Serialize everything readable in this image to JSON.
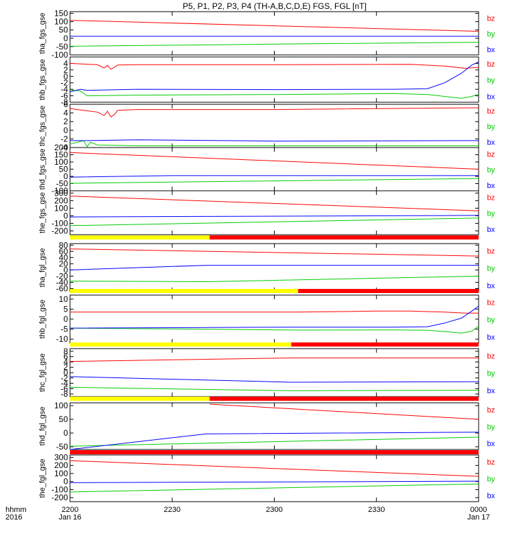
{
  "title": "P5, P1, P2, P3, P4 (TH-A,B,C,D,E) FGS, FGL [nT]",
  "colors": {
    "bx": "#0000ff",
    "by": "#00cc00",
    "bz": "#ff0000",
    "bar_low": "#ffff00",
    "bar_high": "#ff0000"
  },
  "time_axis": {
    "row_labels": [
      "hhmm",
      "2016"
    ],
    "ticks": [
      {
        "t": 0,
        "label": "2200",
        "sub": "Jan 16"
      },
      {
        "t": 30,
        "label": "2230",
        "sub": ""
      },
      {
        "t": 60,
        "label": "2300",
        "sub": ""
      },
      {
        "t": 90,
        "label": "2330",
        "sub": ""
      },
      {
        "t": 120,
        "label": "0000",
        "sub": "Jan 17"
      }
    ],
    "range_minutes": [
      0,
      120
    ]
  },
  "chart_data": [
    {
      "type": "line",
      "ylabel": "tha_fgs_gse",
      "ylim": [
        -100,
        160
      ],
      "yticks": [
        -100,
        -50,
        0,
        50,
        100,
        150
      ],
      "series": [
        {
          "name": "bz",
          "x": [
            0,
            60,
            120
          ],
          "values": [
            108,
            75,
            42
          ]
        },
        {
          "name": "by",
          "x": [
            0,
            60,
            120
          ],
          "values": [
            -48,
            -35,
            -24
          ]
        },
        {
          "name": "bx",
          "x": [
            0,
            60,
            120
          ],
          "values": [
            12,
            12,
            12
          ]
        }
      ]
    },
    {
      "type": "line",
      "ylabel": "thb_fgs_gse",
      "ylim": [
        -8,
        6
      ],
      "yticks": [
        -8,
        -6,
        -4,
        -2,
        0,
        2,
        4
      ],
      "series": [
        {
          "name": "bz",
          "x": [
            0,
            8,
            10,
            11,
            12,
            13,
            14,
            20,
            60,
            100,
            110,
            116,
            120
          ],
          "values": [
            4,
            3.6,
            2.6,
            3.4,
            2.2,
            2.8,
            3.5,
            3.6,
            3.6,
            3.7,
            3.2,
            2.5,
            2.8
          ]
        },
        {
          "name": "by",
          "x": [
            0,
            3,
            5,
            20,
            60,
            95,
            105,
            110,
            115,
            118,
            120
          ],
          "values": [
            -4.2,
            -4.5,
            -6,
            -5.8,
            -5.6,
            -5.3,
            -5.6,
            -6.2,
            -6.8,
            -6.2,
            -5.5
          ]
        },
        {
          "name": "bx",
          "x": [
            0,
            3,
            5,
            20,
            60,
            95,
            105,
            110,
            115,
            118,
            120
          ],
          "values": [
            -4.8,
            -4,
            -4.3,
            -4,
            -4.1,
            -4,
            -3.8,
            -2,
            1,
            3.5,
            4.5
          ]
        }
      ]
    },
    {
      "type": "line",
      "ylabel": "thc_fgs_gse",
      "ylim": [
        -4,
        6
      ],
      "yticks": [
        -4,
        -2,
        0,
        2,
        4,
        6
      ],
      "series": [
        {
          "name": "bz",
          "x": [
            0,
            8,
            10,
            11,
            12,
            13,
            14,
            20,
            60,
            120
          ],
          "values": [
            5,
            4.2,
            3.4,
            4.4,
            3.1,
            3.6,
            4.6,
            4.8,
            4.8,
            5.2
          ]
        },
        {
          "name": "by",
          "x": [
            0,
            4,
            5,
            6,
            8,
            20,
            60,
            120
          ],
          "values": [
            -3.2,
            -2.4,
            -3.8,
            -2.8,
            -3.4,
            -3.6,
            -3.6,
            -3.6
          ]
        },
        {
          "name": "bx",
          "x": [
            0,
            5,
            20,
            60,
            120
          ],
          "values": [
            -2.4,
            -2.4,
            -2.2,
            -2.5,
            -2.4
          ]
        }
      ]
    },
    {
      "type": "line",
      "ylabel": "thd_fgs_gse",
      "ylim": [
        -100,
        200
      ],
      "yticks": [
        -100,
        -50,
        0,
        50,
        100,
        150,
        200
      ],
      "series": [
        {
          "name": "bz",
          "x": [
            0,
            120
          ],
          "values": [
            165,
            50
          ]
        },
        {
          "name": "by",
          "x": [
            0,
            120
          ],
          "values": [
            -48,
            -15
          ]
        },
        {
          "name": "bx",
          "x": [
            0,
            30,
            120
          ],
          "values": [
            -5,
            5,
            5
          ]
        }
      ]
    },
    {
      "type": "line",
      "ylabel": "the_fgs_gse",
      "ylim": [
        -250,
        330
      ],
      "yticks": [
        -200,
        -100,
        0,
        100,
        200,
        300
      ],
      "series": [
        {
          "name": "bz",
          "x": [
            0,
            120
          ],
          "values": [
            260,
            65
          ]
        },
        {
          "name": "by",
          "x": [
            0,
            120
          ],
          "values": [
            -130,
            -30
          ]
        },
        {
          "name": "bx",
          "x": [
            0,
            120
          ],
          "values": [
            -15,
            5
          ]
        }
      ]
    },
    {
      "type": "line",
      "ylabel": "tha_fgl_gse",
      "ylim": [
        -70,
        85
      ],
      "yticks": [
        -60,
        -40,
        -20,
        0,
        20,
        40,
        60,
        80
      ],
      "bar": {
        "split_minute": 41,
        "full_red": false
      },
      "series": [
        {
          "name": "bz",
          "x": [
            0,
            120
          ],
          "values": [
            68,
            45
          ]
        },
        {
          "name": "by",
          "x": [
            0,
            40,
            120
          ],
          "values": [
            -36,
            -38,
            -20
          ]
        },
        {
          "name": "bx",
          "x": [
            0,
            40,
            120
          ],
          "values": [
            0,
            15,
            15
          ]
        }
      ]
    },
    {
      "type": "line",
      "ylabel": "thb_fgl_gse",
      "ylim": [
        -12,
        12
      ],
      "yticks": [
        -10,
        -5,
        0,
        5,
        10
      ],
      "bar": {
        "split_minute": 67,
        "full_red": false
      },
      "series": [
        {
          "name": "bz",
          "x": [
            0,
            67,
            90,
            100,
            110,
            116,
            120
          ],
          "values": [
            3.5,
            3.5,
            4,
            4,
            3.5,
            3,
            3
          ]
        },
        {
          "name": "by",
          "x": [
            0,
            67,
            95,
            105,
            110,
            115,
            118,
            120
          ],
          "values": [
            -4.5,
            -5.5,
            -5.4,
            -5.6,
            -6.2,
            -7,
            -6,
            -3.5
          ]
        },
        {
          "name": "bx",
          "x": [
            0,
            67,
            95,
            105,
            110,
            115,
            118,
            120
          ],
          "values": [
            -4.5,
            -4,
            -4,
            -3.8,
            -2,
            0.5,
            4,
            6.5
          ]
        }
      ]
    },
    {
      "type": "line",
      "ylabel": "thc_fgl_gse",
      "ylim": [
        -9,
        9
      ],
      "yticks": [
        -8,
        -6,
        -4,
        -2,
        0,
        2,
        4,
        6,
        8
      ],
      "bar": {
        "split_minute": 65,
        "full_red": false
      },
      "series": [
        {
          "name": "bz",
          "x": [
            0,
            65,
            120
          ],
          "values": [
            4.2,
            5.5,
            5.5
          ]
        },
        {
          "name": "by",
          "x": [
            0,
            65,
            120
          ],
          "values": [
            -5.5,
            -6.8,
            -6.6
          ]
        },
        {
          "name": "bx",
          "x": [
            0,
            65,
            120
          ],
          "values": [
            -1.5,
            -3.6,
            -3.4
          ]
        }
      ]
    },
    {
      "type": "line",
      "ylabel": "thd_fgl_gse",
      "ylim": [
        -60,
        110
      ],
      "yticks": [
        -50,
        0,
        50,
        100
      ],
      "bar": {
        "split_minute": 41,
        "full_red": false
      },
      "series": [
        {
          "name": "bz",
          "x": [
            41,
            120
          ],
          "values": [
            105,
            50
          ]
        },
        {
          "name": "by",
          "x": [
            0,
            120
          ],
          "values": [
            -48,
            -15
          ]
        },
        {
          "name": "bx",
          "x": [
            0,
            40,
            120
          ],
          "values": [
            -60,
            -3,
            3
          ]
        }
      ]
    },
    {
      "type": "line",
      "ylabel": "the_fgl_gse",
      "ylim": [
        -250,
        330
      ],
      "yticks": [
        -200,
        -100,
        0,
        100,
        200,
        300
      ],
      "bar": {
        "split_minute": 0,
        "full_red": true
      },
      "series": [
        {
          "name": "bz",
          "x": [
            0,
            120
          ],
          "values": [
            260,
            65
          ]
        },
        {
          "name": "by",
          "x": [
            0,
            120
          ],
          "values": [
            -130,
            -30
          ]
        },
        {
          "name": "bx",
          "x": [
            0,
            120
          ],
          "values": [
            -15,
            5
          ]
        }
      ]
    }
  ]
}
